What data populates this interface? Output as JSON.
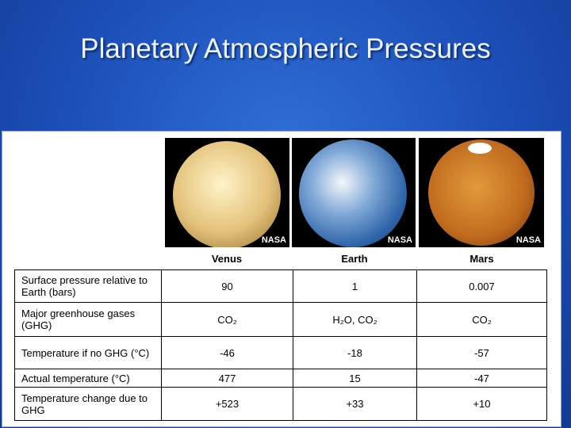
{
  "header": {
    "title": "Planetary Atmospheric Pressures"
  },
  "images": [
    {
      "credit": "NASA"
    },
    {
      "credit": "NASA"
    },
    {
      "credit": "NASA"
    }
  ],
  "table": {
    "columns": [
      "Venus",
      "Earth",
      "Mars"
    ],
    "rows": [
      [
        "Surface pressure relative to Earth (bars)",
        "90",
        "1",
        "0.007"
      ],
      [
        "Major greenhouse gases (GHG)",
        "CO₂",
        "H₂O, CO₂",
        "CO₂"
      ],
      [
        "Temperature if no GHG (°C)",
        "-46",
        "-18",
        "-57"
      ],
      [
        "Actual temperature (°C)",
        "477",
        "15",
        "-47"
      ],
      [
        "Temperature change due to GHG",
        "+523",
        "+33",
        "+10"
      ]
    ]
  }
}
